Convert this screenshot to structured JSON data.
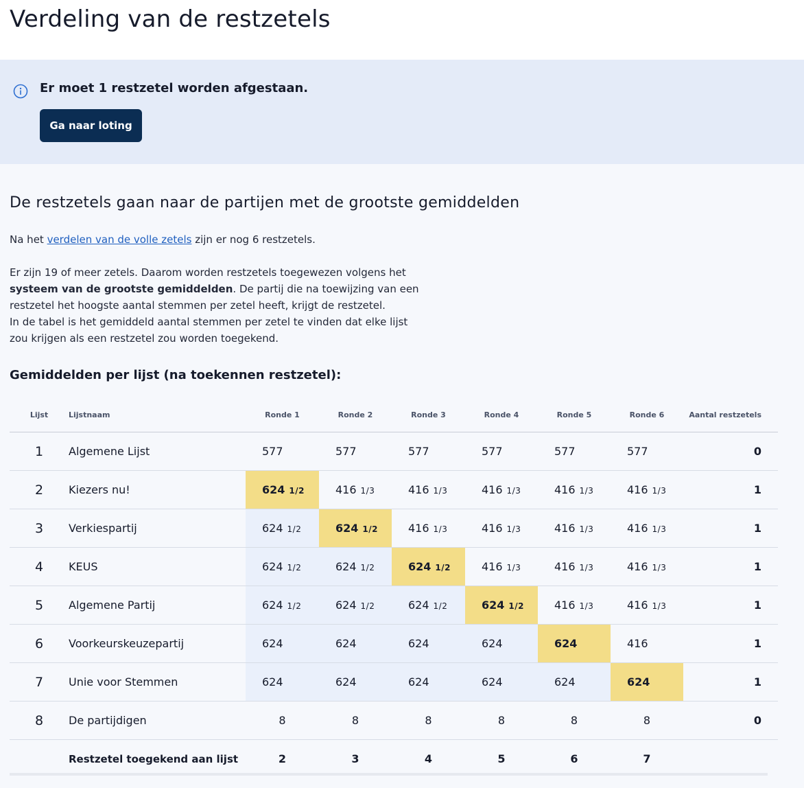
{
  "page": {
    "title": "Verdeling van de restzetels"
  },
  "alert": {
    "message": "Er moet 1 restzetel worden afgestaan.",
    "button_label": "Ga naar loting"
  },
  "section": {
    "title": "De restzetels gaan naar de partijen met de grootste gemiddelden",
    "para1_before": "Na het ",
    "para1_link": "verdelen van de volle zetels",
    "para1_after": " zijn er nog 6 restzetels.",
    "para2_a": "Er zijn 19 of meer zetels. Daarom worden restzetels toegewezen volgens het ",
    "para2_bold": "systeem van de grootste gemiddelden",
    "para2_b": ". De partij die na toewijzing van een restzetel het hoogste aantal stemmen per zetel heeft, krijgt de restzetel.",
    "para2_c": "In de tabel is het gemiddeld aantal stemmen per zetel te vinden dat elke lijst zou krijgen als een restzetel zou worden toegekend."
  },
  "table": {
    "title": "Gemiddelden per lijst (na toekennen restzetel):",
    "headers": {
      "list": "Lijst",
      "name": "Lijstnaam",
      "rounds": [
        "Ronde 1",
        "Ronde 2",
        "Ronde 3",
        "Ronde 4",
        "Ronde 5",
        "Ronde 6"
      ],
      "total": "Aantal restzetels"
    },
    "rows": [
      {
        "list": "1",
        "name": "Algemene Lijst",
        "total": "0",
        "cells": [
          {
            "v": "577",
            "f": ""
          },
          {
            "v": "577",
            "f": ""
          },
          {
            "v": "577",
            "f": ""
          },
          {
            "v": "577",
            "f": ""
          },
          {
            "v": "577",
            "f": ""
          },
          {
            "v": "577",
            "f": ""
          }
        ]
      },
      {
        "list": "2",
        "name": "Kiezers nu!",
        "total": "1",
        "cells": [
          {
            "v": "624",
            "f": "1/2"
          },
          {
            "v": "416",
            "f": "1/3"
          },
          {
            "v": "416",
            "f": "1/3"
          },
          {
            "v": "416",
            "f": "1/3"
          },
          {
            "v": "416",
            "f": "1/3"
          },
          {
            "v": "416",
            "f": "1/3"
          }
        ]
      },
      {
        "list": "3",
        "name": "Verkiespartij",
        "total": "1",
        "cells": [
          {
            "v": "624",
            "f": "1/2"
          },
          {
            "v": "624",
            "f": "1/2"
          },
          {
            "v": "416",
            "f": "1/3"
          },
          {
            "v": "416",
            "f": "1/3"
          },
          {
            "v": "416",
            "f": "1/3"
          },
          {
            "v": "416",
            "f": "1/3"
          }
        ]
      },
      {
        "list": "4",
        "name": "KEUS",
        "total": "1",
        "cells": [
          {
            "v": "624",
            "f": "1/2"
          },
          {
            "v": "624",
            "f": "1/2"
          },
          {
            "v": "624",
            "f": "1/2"
          },
          {
            "v": "416",
            "f": "1/3"
          },
          {
            "v": "416",
            "f": "1/3"
          },
          {
            "v": "416",
            "f": "1/3"
          }
        ]
      },
      {
        "list": "5",
        "name": "Algemene Partij",
        "total": "1",
        "cells": [
          {
            "v": "624",
            "f": "1/2"
          },
          {
            "v": "624",
            "f": "1/2"
          },
          {
            "v": "624",
            "f": "1/2"
          },
          {
            "v": "624",
            "f": "1/2"
          },
          {
            "v": "416",
            "f": "1/3"
          },
          {
            "v": "416",
            "f": "1/3"
          }
        ]
      },
      {
        "list": "6",
        "name": "Voorkeurskeuzepartij",
        "total": "1",
        "cells": [
          {
            "v": "624",
            "f": ""
          },
          {
            "v": "624",
            "f": ""
          },
          {
            "v": "624",
            "f": ""
          },
          {
            "v": "624",
            "f": ""
          },
          {
            "v": "624",
            "f": ""
          },
          {
            "v": "416",
            "f": ""
          }
        ]
      },
      {
        "list": "7",
        "name": "Unie voor Stemmen",
        "total": "1",
        "cells": [
          {
            "v": "624",
            "f": ""
          },
          {
            "v": "624",
            "f": ""
          },
          {
            "v": "624",
            "f": ""
          },
          {
            "v": "624",
            "f": ""
          },
          {
            "v": "624",
            "f": ""
          },
          {
            "v": "624",
            "f": ""
          }
        ]
      },
      {
        "list": "8",
        "name": "De partijdigen",
        "total": "0",
        "cells": [
          {
            "v": "8",
            "f": ""
          },
          {
            "v": "8",
            "f": ""
          },
          {
            "v": "8",
            "f": ""
          },
          {
            "v": "8",
            "f": ""
          },
          {
            "v": "8",
            "f": ""
          },
          {
            "v": "8",
            "f": ""
          }
        ]
      }
    ],
    "footer": {
      "label": "Restzetel toegekend aan lijst",
      "values": [
        "2",
        "3",
        "4",
        "5",
        "6",
        "7"
      ]
    }
  },
  "colors": {
    "highlight": "#f3dd88",
    "previous": "#eaf0fb",
    "button": "#0b2d53",
    "alert_bg": "#e4ebf8",
    "link": "#1f5fbf"
  },
  "icons": {
    "alert": "info-circle-icon"
  }
}
